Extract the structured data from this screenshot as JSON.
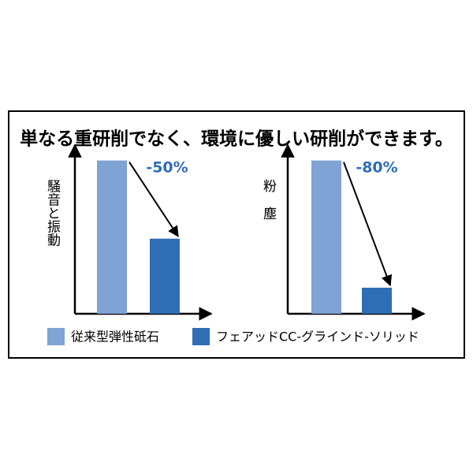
{
  "title": "単なる重研削でなく、環境に優しい研削ができます。",
  "legend": [
    {
      "name": "従来型弾性砥石",
      "color": "#7fa3d4"
    },
    {
      "name": "フェアッドCC-グラインド-ソリッド",
      "color": "#2f6db5"
    }
  ],
  "chart_data": [
    {
      "type": "bar",
      "ylabel": "騒音と振動",
      "annotation": "-50%",
      "values": [
        100,
        49
      ],
      "ylim": [
        0,
        107
      ]
    },
    {
      "type": "bar",
      "ylabel": "粉塵",
      "annotation": "-80%",
      "values": [
        100,
        17
      ],
      "ylim": [
        0,
        107
      ]
    }
  ]
}
